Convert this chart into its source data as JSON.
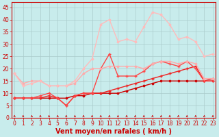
{
  "xlabel": "Vent moyen/en rafales ( km/h )",
  "background_color": "#c8ecec",
  "grid_color": "#aacccc",
  "x_ticks": [
    0,
    1,
    2,
    3,
    4,
    5,
    6,
    7,
    8,
    9,
    10,
    11,
    12,
    13,
    14,
    15,
    16,
    17,
    18,
    19,
    20,
    21,
    22,
    23
  ],
  "y_ticks": [
    0,
    5,
    10,
    15,
    20,
    25,
    30,
    35,
    40,
    45
  ],
  "ylim": [
    0,
    47
  ],
  "xlim": [
    -0.3,
    23.3
  ],
  "lines": [
    {
      "x": [
        0,
        1,
        2,
        3,
        4,
        5,
        6,
        7,
        8,
        9,
        10,
        11,
        12,
        13,
        14,
        15,
        16,
        17,
        18,
        19,
        20,
        21,
        22,
        23
      ],
      "y": [
        8,
        8,
        8,
        8,
        8,
        8,
        8,
        9,
        9,
        10,
        10,
        10,
        10,
        11,
        12,
        13,
        14,
        15,
        15,
        15,
        15,
        15,
        15,
        15
      ],
      "color": "#cc0000",
      "lw": 1.0,
      "marker": "D",
      "ms": 1.5
    },
    {
      "x": [
        0,
        1,
        2,
        3,
        4,
        5,
        6,
        7,
        8,
        9,
        10,
        11,
        12,
        13,
        14,
        15,
        16,
        17,
        18,
        19,
        20,
        21,
        22,
        23
      ],
      "y": [
        8,
        8,
        8,
        8,
        9,
        8,
        5,
        9,
        10,
        10,
        10,
        11,
        12,
        13,
        14,
        15,
        16,
        17,
        18,
        19,
        20,
        21,
        15,
        16
      ],
      "color": "#ee2222",
      "lw": 1.0,
      "marker": "+",
      "ms": 3.0
    },
    {
      "x": [
        0,
        1,
        2,
        3,
        4,
        5,
        6,
        7,
        8,
        9,
        10,
        11,
        12,
        13,
        14,
        15,
        16,
        17,
        18,
        19,
        20,
        21,
        22,
        23
      ],
      "y": [
        8,
        8,
        8,
        9,
        10,
        8,
        5,
        9,
        10,
        10,
        20,
        26,
        17,
        17,
        17,
        19,
        22,
        23,
        22,
        21,
        23,
        20,
        15,
        15
      ],
      "color": "#ff4444",
      "lw": 1.0,
      "marker": "+",
      "ms": 3.0
    },
    {
      "x": [
        0,
        1,
        2,
        3,
        4,
        5,
        6,
        7,
        8,
        9,
        10,
        11,
        12,
        13,
        14,
        15,
        16,
        17,
        18,
        19,
        20,
        21,
        22,
        23
      ],
      "y": [
        18,
        14,
        15,
        15,
        13,
        13,
        13,
        14,
        18,
        20,
        20,
        21,
        21,
        21,
        21,
        20,
        22,
        23,
        23,
        22,
        23,
        22,
        16,
        16
      ],
      "color": "#ffaaaa",
      "lw": 1.0,
      "marker": "D",
      "ms": 1.5
    },
    {
      "x": [
        0,
        1,
        2,
        3,
        4,
        5,
        6,
        7,
        8,
        9,
        10,
        11,
        12,
        13,
        14,
        15,
        16,
        17,
        18,
        19,
        20,
        21,
        22,
        23
      ],
      "y": [
        18,
        13,
        14,
        15,
        13,
        13,
        13,
        15,
        20,
        24,
        38,
        40,
        31,
        32,
        31,
        37,
        43,
        42,
        38,
        32,
        33,
        31,
        25,
        26
      ],
      "color": "#ffbbbb",
      "lw": 1.0,
      "marker": "D",
      "ms": 1.5
    }
  ],
  "red_color": "#cc0000",
  "xlabel_fontsize": 7,
  "tick_fontsize": 5.5
}
